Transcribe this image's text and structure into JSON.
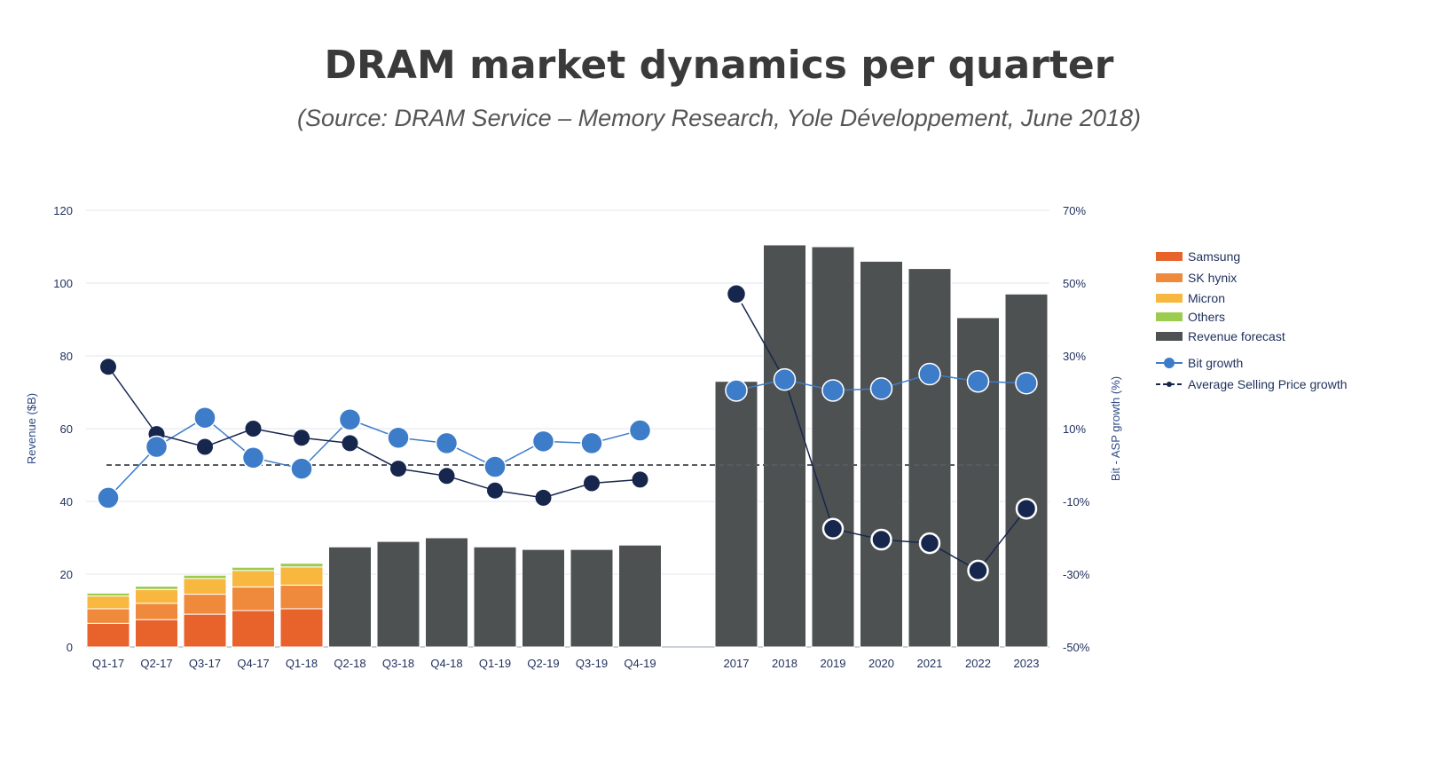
{
  "chart_data": {
    "type": "bar",
    "title": "DRAM market dynamics per quarter",
    "subtitle": "(Source: DRAM Service – Memory Research, Yole Développement, June 2018)",
    "ylabel": "Revenue ($B)",
    "y2label": "Bit - ASP growth (%)",
    "ylim": [
      0,
      120
    ],
    "y2lim": [
      -50,
      70
    ],
    "yticks": [
      "0",
      "20",
      "40",
      "60",
      "80",
      "100",
      "120"
    ],
    "y2ticks": [
      "-50%",
      "-30%",
      "-10%",
      "10%",
      "30%",
      "50%",
      "70%"
    ],
    "categories": [
      "Q1-17",
      "Q2-17",
      "Q3-17",
      "Q4-17",
      "Q1-18",
      "Q2-18",
      "Q3-18",
      "Q4-18",
      "Q1-19",
      "Q2-19",
      "Q3-19",
      "Q4-19",
      "2017",
      "2018",
      "2019",
      "2020",
      "2021",
      "2022",
      "2023"
    ],
    "series": [
      {
        "name": "Samsung",
        "type": "stacked-bar",
        "color": "#e8622c",
        "values": [
          6.5,
          7.5,
          9,
          10,
          10.5,
          null,
          null,
          null,
          null,
          null,
          null,
          null,
          null,
          null,
          null,
          null,
          null,
          null,
          null
        ]
      },
      {
        "name": "SK hynix",
        "type": "stacked-bar",
        "color": "#ef8a3c",
        "values": [
          4,
          4.5,
          5.5,
          6.5,
          6.5,
          null,
          null,
          null,
          null,
          null,
          null,
          null,
          null,
          null,
          null,
          null,
          null,
          null,
          null
        ]
      },
      {
        "name": "Micron",
        "type": "stacked-bar",
        "color": "#f8b73e",
        "values": [
          3.5,
          3.8,
          4.3,
          4.5,
          5,
          null,
          null,
          null,
          null,
          null,
          null,
          null,
          null,
          null,
          null,
          null,
          null,
          null,
          null
        ]
      },
      {
        "name": "Others",
        "type": "stacked-bar",
        "color": "#9ccc4e",
        "values": [
          0.8,
          0.9,
          0.9,
          0.9,
          1,
          null,
          null,
          null,
          null,
          null,
          null,
          null,
          null,
          null,
          null,
          null,
          null,
          null,
          null
        ]
      },
      {
        "name": "Revenue forecast",
        "type": "bar",
        "color": "#4d5152",
        "values": [
          null,
          null,
          null,
          null,
          null,
          27.5,
          29,
          30,
          27.5,
          26.8,
          26.8,
          28,
          73,
          110.5,
          110,
          106,
          104,
          90.5,
          97
        ]
      },
      {
        "name": "Bit growth",
        "type": "line",
        "axis": "right",
        "color": "#3d7cc9",
        "values": [
          -9,
          5,
          13,
          2,
          -1,
          12.5,
          7.5,
          6,
          -0.5,
          6.5,
          6,
          9.5,
          20.5,
          23.5,
          20.5,
          21,
          25,
          23,
          22.5
        ]
      },
      {
        "name": "Average Selling Price growth",
        "type": "line",
        "axis": "right",
        "color": "#17264d",
        "values": [
          27,
          8.5,
          5,
          10,
          7.5,
          6,
          -1,
          -3,
          -7,
          -9,
          -5,
          -4,
          47,
          23.5,
          -17.5,
          -20.5,
          -21.5,
          -29,
          -12
        ]
      }
    ],
    "reference_line": {
      "axis": "right",
      "value": 0,
      "style": "dashed"
    },
    "legend": "right",
    "grid": "horizontal"
  }
}
